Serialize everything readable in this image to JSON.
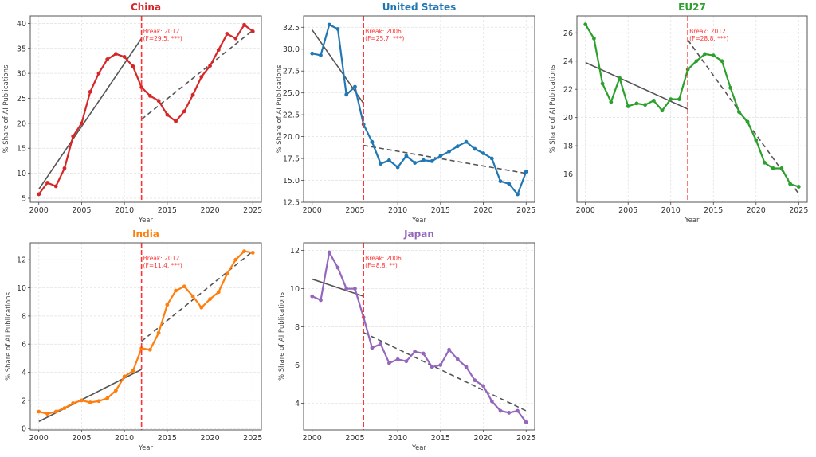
{
  "chart_data": [
    {
      "type": "line",
      "title": "China",
      "color": "#d62728",
      "xlabel": "Year",
      "ylabel": "% Share of AI Publications",
      "xlim": [
        1999,
        2026
      ],
      "ylim": [
        4.2,
        41.5
      ],
      "xticks": [
        2000,
        2005,
        2010,
        2015,
        2020,
        2025
      ],
      "yticks": [
        5,
        10,
        15,
        20,
        25,
        30,
        35,
        40
      ],
      "ytick_labels": [
        "5",
        "10",
        "15",
        "20",
        "25",
        "30",
        "35",
        "40"
      ],
      "grid": true,
      "x": [
        2000,
        2001,
        2002,
        2003,
        2004,
        2005,
        2006,
        2007,
        2008,
        2009,
        2010,
        2011,
        2012,
        2013,
        2014,
        2015,
        2016,
        2017,
        2018,
        2019,
        2020,
        2021,
        2022,
        2023,
        2024,
        2025
      ],
      "values": [
        5.8,
        8.1,
        7.4,
        11.0,
        17.4,
        20.0,
        26.3,
        30.0,
        32.8,
        33.9,
        33.3,
        31.4,
        27.2,
        25.5,
        24.5,
        21.7,
        20.4,
        22.4,
        25.7,
        29.3,
        31.5,
        34.7,
        37.9,
        37.0,
        39.7,
        38.4
      ],
      "break_year": 2012,
      "break_label_line1": "Break: 2012",
      "break_label_line2": "(F=29.5, ***)",
      "fit_pre": {
        "x": [
          2000,
          2012
        ],
        "y": [
          6.8,
          37.0
        ]
      },
      "fit_post": {
        "x": [
          2012,
          2025
        ],
        "y": [
          20.8,
          38.6
        ]
      }
    },
    {
      "type": "line",
      "title": "United States",
      "color": "#1f77b4",
      "xlabel": "Year",
      "ylabel": "% Share of AI Publications",
      "xlim": [
        1999,
        2026
      ],
      "ylim": [
        12.5,
        33.8
      ],
      "xticks": [
        2000,
        2005,
        2010,
        2015,
        2020,
        2025
      ],
      "yticks": [
        12.5,
        15.0,
        17.5,
        20.0,
        22.5,
        25.0,
        27.5,
        30.0,
        32.5
      ],
      "ytick_labels": [
        "12.5",
        "15.0",
        "17.5",
        "20.0",
        "22.5",
        "25.0",
        "27.5",
        "30.0",
        "32.5"
      ],
      "grid": true,
      "x": [
        2000,
        2001,
        2002,
        2003,
        2004,
        2005,
        2006,
        2007,
        2008,
        2009,
        2010,
        2011,
        2012,
        2013,
        2014,
        2015,
        2016,
        2017,
        2018,
        2019,
        2020,
        2021,
        2022,
        2023,
        2024,
        2025
      ],
      "values": [
        29.5,
        29.3,
        32.8,
        32.3,
        24.8,
        25.7,
        21.4,
        19.4,
        16.9,
        17.3,
        16.5,
        17.8,
        17.0,
        17.3,
        17.2,
        17.8,
        18.3,
        18.9,
        19.4,
        18.6,
        18.1,
        17.5,
        14.9,
        14.6,
        13.4,
        16.0
      ],
      "break_year": 2006,
      "break_label_line1": "Break: 2006",
      "break_label_line2": "(F=25.7, ***)",
      "fit_pre": {
        "x": [
          2000,
          2006
        ],
        "y": [
          32.2,
          23.8
        ]
      },
      "fit_post": {
        "x": [
          2006,
          2025
        ],
        "y": [
          19.0,
          15.8
        ]
      }
    },
    {
      "type": "line",
      "title": "EU27",
      "color": "#2ca02c",
      "xlabel": "Year",
      "ylabel": "% Share of AI Publications",
      "xlim": [
        1999,
        2026
      ],
      "ylim": [
        14.0,
        27.2
      ],
      "xticks": [
        2000,
        2005,
        2010,
        2015,
        2020,
        2025
      ],
      "yticks": [
        16,
        18,
        20,
        22,
        24,
        26
      ],
      "ytick_labels": [
        "16",
        "18",
        "20",
        "22",
        "24",
        "26"
      ],
      "grid": true,
      "x": [
        2000,
        2001,
        2002,
        2003,
        2004,
        2005,
        2006,
        2007,
        2008,
        2009,
        2010,
        2011,
        2012,
        2013,
        2014,
        2015,
        2016,
        2017,
        2018,
        2019,
        2020,
        2021,
        2022,
        2023,
        2024,
        2025
      ],
      "values": [
        26.6,
        25.6,
        22.4,
        21.1,
        22.8,
        20.8,
        21.0,
        20.9,
        21.2,
        20.5,
        21.3,
        21.3,
        23.4,
        24.0,
        24.5,
        24.4,
        24.0,
        22.1,
        20.4,
        19.7,
        18.4,
        16.8,
        16.4,
        16.4,
        15.3,
        15.1
      ],
      "break_year": 2012,
      "break_label_line1": "Break: 2012",
      "break_label_line2": "(F=28.8, ***)",
      "fit_pre": {
        "x": [
          2000,
          2012
        ],
        "y": [
          23.9,
          20.6
        ]
      },
      "fit_post": {
        "x": [
          2012,
          2025
        ],
        "y": [
          25.5,
          14.6
        ]
      }
    },
    {
      "type": "line",
      "title": "India",
      "color": "#ff7f0e",
      "xlabel": "Year",
      "ylabel": "% Share of AI Publications",
      "xlim": [
        1999,
        2026
      ],
      "ylim": [
        -0.1,
        13.2
      ],
      "xticks": [
        2000,
        2005,
        2010,
        2015,
        2020,
        2025
      ],
      "yticks": [
        0,
        2,
        4,
        6,
        8,
        10,
        12
      ],
      "ytick_labels": [
        "0",
        "2",
        "4",
        "6",
        "8",
        "10",
        "12"
      ],
      "grid": true,
      "x": [
        2000,
        2001,
        2002,
        2003,
        2004,
        2005,
        2006,
        2007,
        2008,
        2009,
        2010,
        2011,
        2012,
        2013,
        2014,
        2015,
        2016,
        2017,
        2018,
        2019,
        2020,
        2021,
        2022,
        2023,
        2024,
        2025
      ],
      "values": [
        1.2,
        1.05,
        1.2,
        1.45,
        1.8,
        2.0,
        1.85,
        1.95,
        2.15,
        2.7,
        3.7,
        4.1,
        5.7,
        5.6,
        6.8,
        8.8,
        9.8,
        10.1,
        9.4,
        8.6,
        9.2,
        9.7,
        11.0,
        12.0,
        12.6,
        12.5
      ],
      "break_year": 2012,
      "break_label_line1": "Break: 2012",
      "break_label_line2": "(F=11.4, ***)",
      "fit_pre": {
        "x": [
          2000,
          2012
        ],
        "y": [
          0.5,
          4.2
        ]
      },
      "fit_post": {
        "x": [
          2012,
          2025
        ],
        "y": [
          6.2,
          12.6
        ]
      }
    },
    {
      "type": "line",
      "title": "Japan",
      "color": "#9467bd",
      "xlabel": "Year",
      "ylabel": "% Share of AI Publications",
      "xlim": [
        1999,
        2026
      ],
      "ylim": [
        2.6,
        12.4
      ],
      "xticks": [
        2000,
        2005,
        2010,
        2015,
        2020,
        2025
      ],
      "yticks": [
        4,
        6,
        8,
        10,
        12
      ],
      "ytick_labels": [
        "4",
        "6",
        "8",
        "10",
        "12"
      ],
      "grid": true,
      "x": [
        2000,
        2001,
        2002,
        2003,
        2004,
        2005,
        2006,
        2007,
        2008,
        2009,
        2010,
        2011,
        2012,
        2013,
        2014,
        2015,
        2016,
        2017,
        2018,
        2019,
        2020,
        2021,
        2022,
        2023,
        2024,
        2025
      ],
      "values": [
        9.6,
        9.4,
        11.9,
        11.1,
        10.0,
        10.0,
        8.5,
        6.9,
        7.1,
        6.1,
        6.3,
        6.2,
        6.7,
        6.6,
        5.9,
        6.0,
        6.8,
        6.3,
        5.9,
        5.2,
        4.9,
        4.1,
        3.6,
        3.5,
        3.6,
        3.0
      ],
      "break_year": 2006,
      "break_label_line1": "Break: 2006",
      "break_label_line2": "(F=8.8, **)",
      "fit_pre": {
        "x": [
          2000,
          2006
        ],
        "y": [
          10.5,
          9.6
        ]
      },
      "fit_post": {
        "x": [
          2006,
          2025
        ],
        "y": [
          7.7,
          3.6
        ]
      }
    }
  ]
}
